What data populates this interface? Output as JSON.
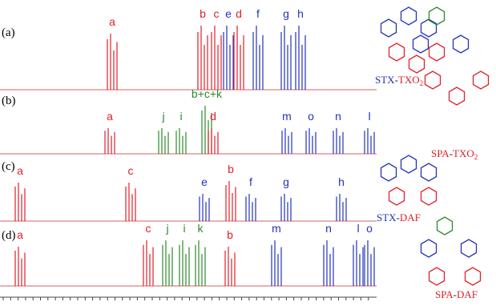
{
  "panels": [
    {
      "label": "(a)",
      "compound": {
        "donor": "STX",
        "sep": "-",
        "acceptor": "TXO",
        "sub": "2"
      },
      "peaks": [
        "a",
        "b",
        "c",
        "e",
        "d",
        "f",
        "g",
        "h"
      ]
    },
    {
      "label": "(b)",
      "compound": {
        "donor": "SPA",
        "sep": "-",
        "acceptor": "TXO",
        "sub": "2"
      },
      "peaks": [
        "a",
        "j",
        "i",
        "b+c+k",
        "d",
        "m",
        "o",
        "n",
        "l"
      ]
    },
    {
      "label": "(c)",
      "compound": {
        "donor": "STX",
        "sep": "-",
        "acceptor": "DAF"
      },
      "peaks": [
        "a",
        "c",
        "e",
        "b",
        "f",
        "g",
        "h"
      ]
    },
    {
      "label": "(d)",
      "compound": {
        "donor": "SPA",
        "sep": "-",
        "acceptor": "DAF"
      },
      "peaks": [
        "a",
        "c",
        "j",
        "i",
        "k",
        "b",
        "m",
        "n",
        "l",
        "o"
      ]
    }
  ]
}
